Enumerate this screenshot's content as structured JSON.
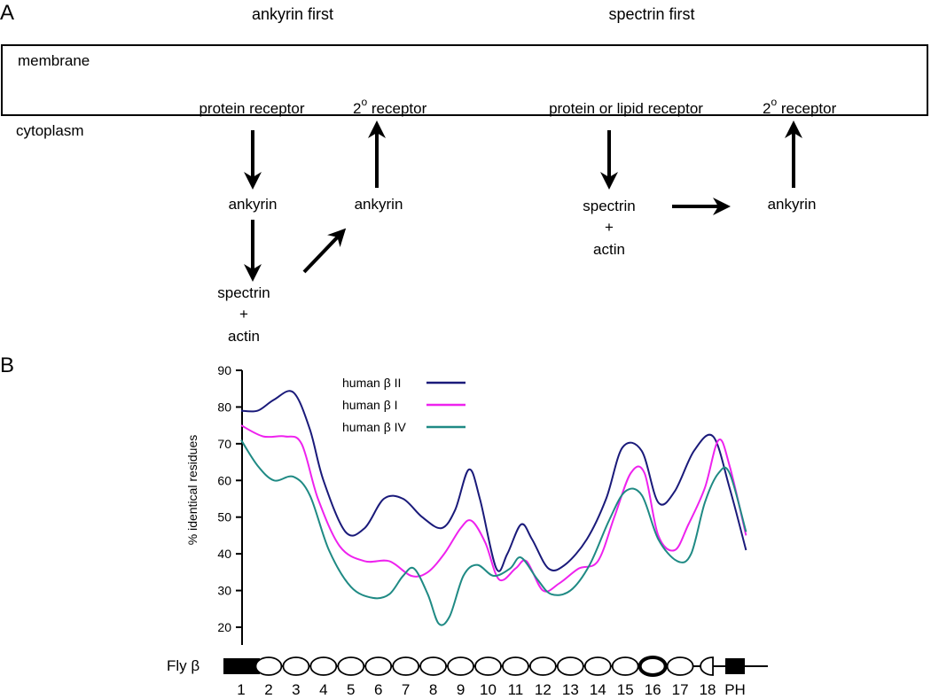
{
  "panel_a": {
    "label": "A",
    "left_title": "ankyrin first",
    "right_title": "spectrin first",
    "membrane": "membrane",
    "cytoplasm": "cytoplasm",
    "left": {
      "receptor": "protein receptor",
      "secondary_receptor_sup": "o",
      "secondary_receptor": " receptor",
      "secondary_receptor_num": "2",
      "ankyrin_1": "ankyrin",
      "ankyrin_2": "ankyrin",
      "spectrin": "spectrin",
      "plus": "+",
      "actin": "actin"
    },
    "right": {
      "receptor": "protein or lipid receptor",
      "secondary_receptor_num": "2",
      "secondary_receptor_sup": "o",
      "secondary_receptor": " receptor",
      "spectrin": "spectrin",
      "plus": "+",
      "actin": "actin",
      "ankyrin": "ankyrin"
    }
  },
  "panel_b": {
    "label": "B",
    "ylabel": "% identical residues",
    "fly_label": "Fly β",
    "domain_labels": [
      "1",
      "2",
      "3",
      "4",
      "5",
      "6",
      "7",
      "8",
      "9",
      "10",
      "11",
      "12",
      "13",
      "14",
      "15",
      "16",
      "17",
      "18",
      "PH"
    ]
  },
  "chart_data": {
    "type": "line",
    "ylabel": "% identical residues",
    "ylim": [
      20,
      90
    ],
    "yticks": [
      20,
      30,
      40,
      50,
      60,
      70,
      80,
      90
    ],
    "legend_position": "top-center",
    "x": [
      "1",
      "2",
      "3",
      "4",
      "5",
      "6",
      "7",
      "8",
      "9",
      "10",
      "11",
      "12",
      "13",
      "14",
      "15",
      "16",
      "17",
      "18",
      "PH"
    ],
    "series": [
      {
        "name": "human β II",
        "color": "#1a1a7a",
        "points": [
          [
            1.0,
            79
          ],
          [
            1.6,
            79
          ],
          [
            2.2,
            82
          ],
          [
            2.9,
            84
          ],
          [
            3.5,
            74
          ],
          [
            4.0,
            60
          ],
          [
            4.8,
            46
          ],
          [
            5.5,
            47
          ],
          [
            6.2,
            55
          ],
          [
            6.9,
            55
          ],
          [
            7.6,
            50
          ],
          [
            8.3,
            47
          ],
          [
            8.8,
            52
          ],
          [
            9.3,
            63
          ],
          [
            9.7,
            55
          ],
          [
            10.3,
            36
          ],
          [
            10.7,
            40
          ],
          [
            11.2,
            48
          ],
          [
            11.6,
            44
          ],
          [
            12.2,
            36
          ],
          [
            12.8,
            37
          ],
          [
            13.6,
            44
          ],
          [
            14.3,
            55
          ],
          [
            14.9,
            69
          ],
          [
            15.6,
            68
          ],
          [
            16.2,
            54
          ],
          [
            16.8,
            57
          ],
          [
            17.5,
            68
          ],
          [
            18.2,
            72
          ],
          [
            18.8,
            58
          ],
          [
            19.4,
            41
          ]
        ]
      },
      {
        "name": "human β I",
        "color": "#ee22ee",
        "points": [
          [
            1.0,
            75
          ],
          [
            1.8,
            72
          ],
          [
            2.6,
            72
          ],
          [
            3.2,
            70
          ],
          [
            3.8,
            55
          ],
          [
            4.6,
            42
          ],
          [
            5.5,
            38
          ],
          [
            6.4,
            38
          ],
          [
            7.2,
            34
          ],
          [
            7.8,
            35
          ],
          [
            8.4,
            40
          ],
          [
            9.0,
            47
          ],
          [
            9.4,
            49
          ],
          [
            9.9,
            43
          ],
          [
            10.4,
            33
          ],
          [
            11.0,
            36
          ],
          [
            11.4,
            38
          ],
          [
            12.0,
            30
          ],
          [
            12.6,
            32
          ],
          [
            13.3,
            36
          ],
          [
            14.0,
            38
          ],
          [
            14.6,
            50
          ],
          [
            15.2,
            62
          ],
          [
            15.7,
            62
          ],
          [
            16.2,
            45
          ],
          [
            16.8,
            41
          ],
          [
            17.3,
            48
          ],
          [
            17.9,
            58
          ],
          [
            18.4,
            71
          ],
          [
            18.8,
            64
          ],
          [
            19.4,
            45
          ]
        ]
      },
      {
        "name": "human β IV",
        "color": "#1f8a84",
        "points": [
          [
            1.0,
            71
          ],
          [
            1.6,
            64
          ],
          [
            2.2,
            60
          ],
          [
            2.9,
            61
          ],
          [
            3.5,
            56
          ],
          [
            4.2,
            41
          ],
          [
            5.0,
            31
          ],
          [
            5.8,
            28
          ],
          [
            6.4,
            29
          ],
          [
            6.9,
            34
          ],
          [
            7.3,
            36
          ],
          [
            7.8,
            29
          ],
          [
            8.2,
            21
          ],
          [
            8.6,
            23
          ],
          [
            9.1,
            34
          ],
          [
            9.6,
            37
          ],
          [
            10.2,
            34
          ],
          [
            10.8,
            36
          ],
          [
            11.2,
            39
          ],
          [
            11.8,
            33
          ],
          [
            12.3,
            29
          ],
          [
            13.0,
            30
          ],
          [
            13.7,
            37
          ],
          [
            14.4,
            49
          ],
          [
            15.0,
            57
          ],
          [
            15.6,
            56
          ],
          [
            16.2,
            44
          ],
          [
            16.9,
            38
          ],
          [
            17.4,
            40
          ],
          [
            17.9,
            54
          ],
          [
            18.4,
            62
          ],
          [
            18.8,
            62
          ],
          [
            19.4,
            46
          ]
        ]
      }
    ]
  }
}
